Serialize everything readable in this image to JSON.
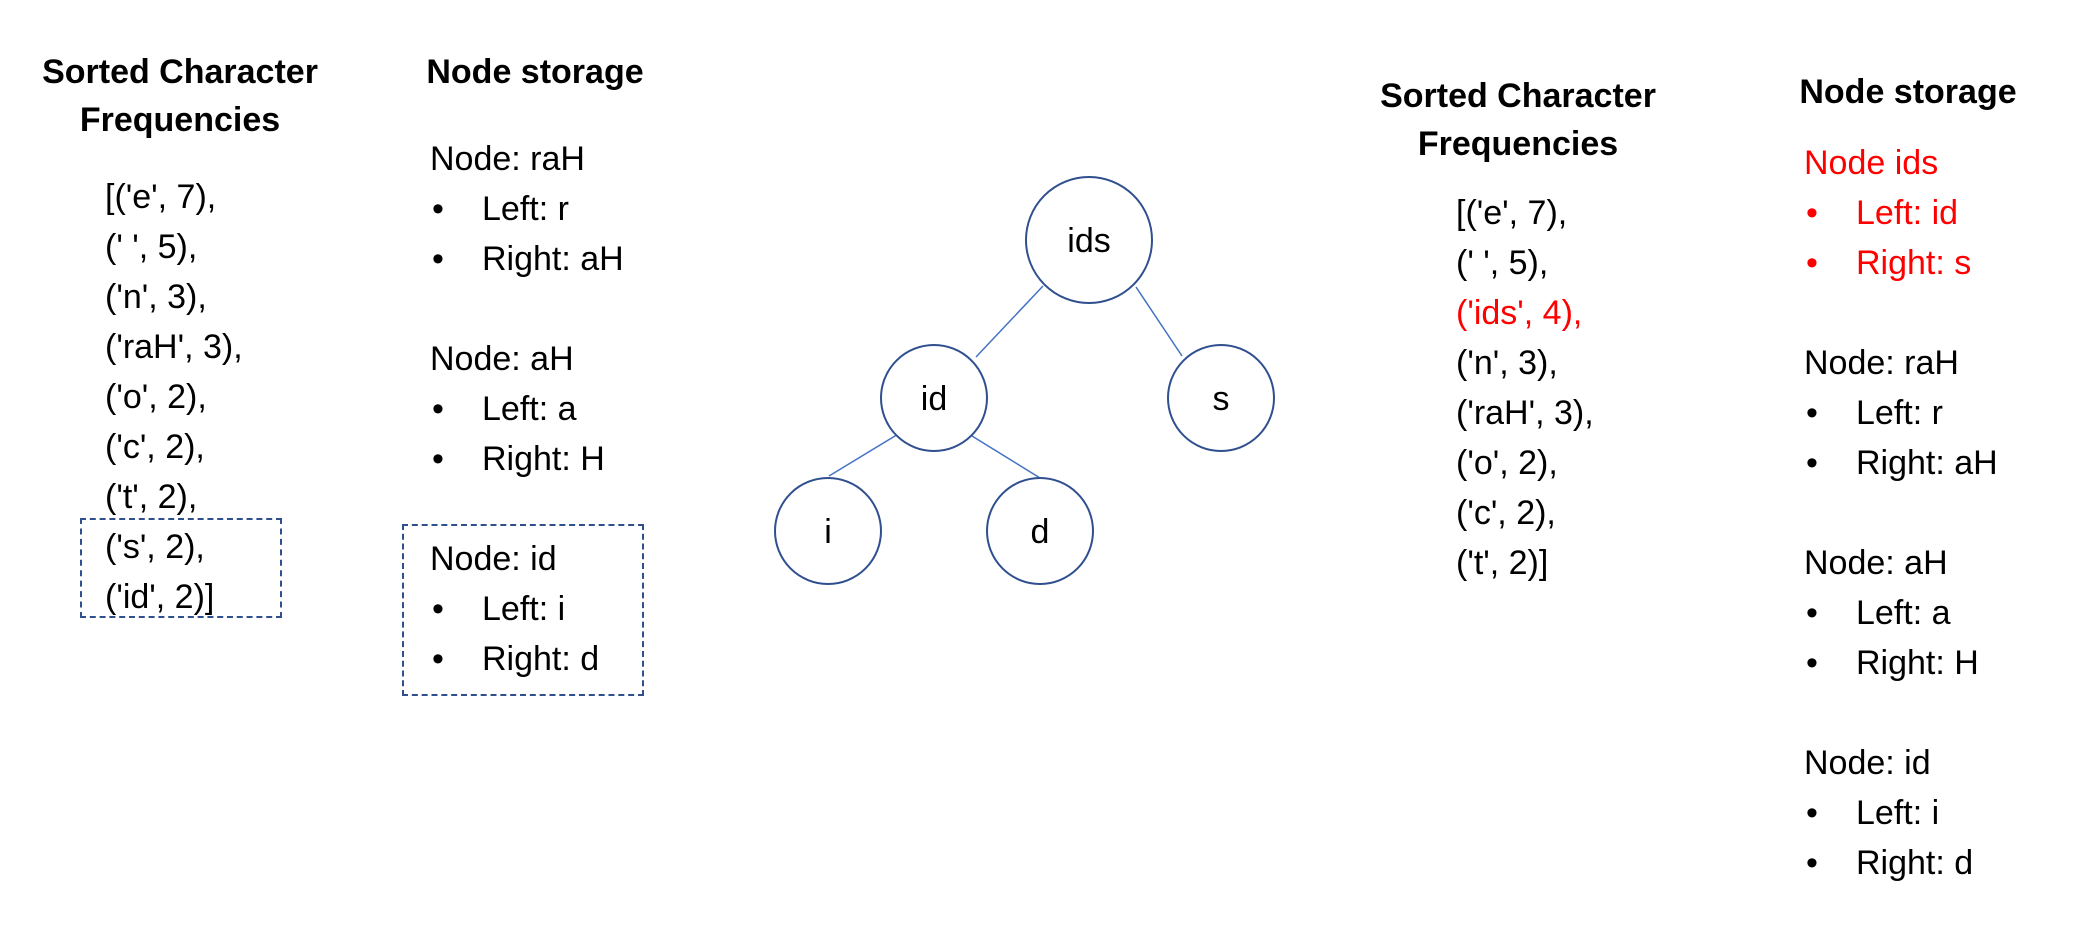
{
  "left_panel": {
    "freq_heading": [
      "Sorted Character",
      "Frequencies"
    ],
    "freq_list": [
      "[('e', 7),",
      "(' ', 5),",
      "('n', 3),",
      "('raH', 3),",
      "('o', 2),",
      "('c', 2),",
      "('t', 2),",
      "('s', 2),",
      "('id', 2)]"
    ],
    "storage_heading": "Node storage",
    "nodes": [
      {
        "title": "Node: raH",
        "left": "Left: r",
        "right": "Right: aH"
      },
      {
        "title": "Node: aH",
        "left": "Left: a",
        "right": "Right: H"
      },
      {
        "title": "Node: id",
        "left": "Left: i",
        "right": "Right: d"
      }
    ]
  },
  "tree": {
    "root": "ids",
    "left_child": "id",
    "right_child": "s",
    "left_left": "i",
    "left_right": "d",
    "line_color": "#4472c4",
    "circle_color": "#2f4f8f"
  },
  "right_panel": {
    "freq_heading": [
      "Sorted Character",
      "Frequencies"
    ],
    "freq_list": [
      "[('e', 7),",
      "(' ', 5),",
      "('ids', 4),",
      "('n', 3),",
      "('raH', 3),",
      "('o', 2),",
      "('c', 2),",
      "('t', 2)]"
    ],
    "storage_heading": "Node storage",
    "nodes": [
      {
        "title": "Node ids",
        "left": "Left: id",
        "right": "Right: s"
      },
      {
        "title": "Node: raH",
        "left": "Left: r",
        "right": "Right: aH"
      },
      {
        "title": "Node: aH",
        "left": "Left: a",
        "right": "Right: H"
      },
      {
        "title": "Node: id",
        "left": "Left: i",
        "right": "Right: d"
      }
    ]
  },
  "highlight_color": "#ff0000"
}
